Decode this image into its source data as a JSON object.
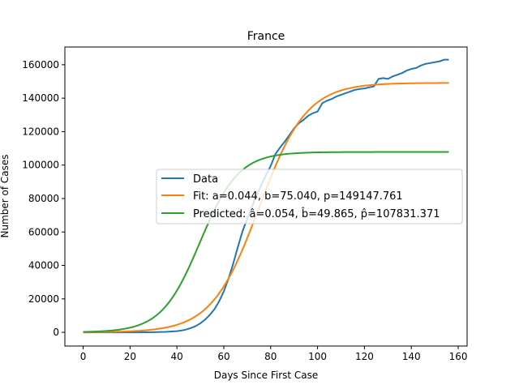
{
  "chart_data": {
    "type": "line",
    "title": "France",
    "xlabel": "Days Since First Case",
    "ylabel": "Number of Cases",
    "xlim": [
      -7.8,
      163.8
    ],
    "ylim": [
      -8200,
      170600
    ],
    "xticks": [
      0,
      20,
      40,
      60,
      80,
      100,
      120,
      140,
      160
    ],
    "yticks": [
      0,
      20000,
      40000,
      60000,
      80000,
      100000,
      120000,
      140000,
      160000
    ],
    "legend_position": "center-right",
    "series": [
      {
        "name": "Data",
        "color": "#1f77b4",
        "x": [
          0,
          10,
          20,
          30,
          35,
          40,
          42,
          44,
          46,
          48,
          50,
          52,
          54,
          56,
          58,
          60,
          62,
          64,
          66,
          68,
          70,
          72,
          74,
          76,
          78,
          80,
          82,
          84,
          86,
          88,
          90,
          92,
          94,
          96,
          98,
          100,
          102,
          104,
          106,
          108,
          110,
          112,
          114,
          116,
          118,
          120,
          122,
          124,
          126,
          128,
          130,
          132,
          134,
          136,
          138,
          140,
          142,
          144,
          146,
          148,
          150,
          152,
          154,
          156
        ],
        "y": [
          0,
          0,
          0,
          100,
          300,
          700,
          1100,
          1700,
          2600,
          3700,
          5400,
          7600,
          10400,
          13800,
          18500,
          24500,
          32000,
          41000,
          51000,
          60500,
          68000,
          75000,
          82000,
          88000,
          94000,
          99500,
          106500,
          110500,
          114000,
          118000,
          122000,
          125000,
          127000,
          129500,
          131000,
          132000,
          137000,
          138500,
          139500,
          141000,
          142000,
          143000,
          144000,
          145000,
          145500,
          145800,
          146500,
          147000,
          151500,
          152000,
          151500,
          153000,
          154000,
          155000,
          156500,
          157500,
          158000,
          159500,
          160500,
          161000,
          161500,
          162000,
          163000,
          163000
        ]
      },
      {
        "name": "Fit: a=0.044, b=75.040, p=149147.761",
        "color": "#ff7f0e",
        "a": 0.044,
        "b": 75.04,
        "p": 149147.761,
        "x_range": [
          0,
          156
        ]
      },
      {
        "name": "Predicted: â=0.054, b̂=49.865, p̂=107831.371",
        "color": "#2ca02c",
        "a": 0.054,
        "b": 49.865,
        "p": 107831.371,
        "x_range": [
          0,
          156
        ]
      }
    ]
  }
}
